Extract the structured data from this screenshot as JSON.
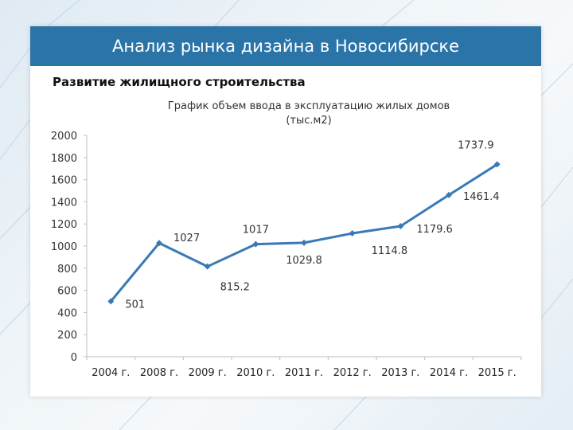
{
  "header": {
    "title": "Анализ рынка дизайна в Новосибирске"
  },
  "section": {
    "subtitle": "Развитие жилищного строительства"
  },
  "chart_data": {
    "type": "line",
    "title_line1": "График объем ввода в эксплуатацию жилых домов",
    "title_line2": "(тыс.м2)",
    "categories": [
      "2004 г.",
      "2008 г.",
      "2009 г.",
      "2010 г.",
      "2011 г.",
      "2012 г.",
      "2013 г.",
      "2014 г.",
      "2015 г."
    ],
    "values": [
      501,
      1027,
      815.2,
      1017,
      1029.8,
      1114.8,
      1179.6,
      1461.4,
      1737.9
    ],
    "data_labels": [
      "501",
      "1027",
      "815.2",
      "1017",
      "1029.8",
      "1114.8",
      "1179.6",
      "1461.4",
      "1737.9"
    ],
    "ylim": [
      0,
      2000
    ],
    "yticks": [
      0,
      200,
      400,
      600,
      800,
      1000,
      1200,
      1400,
      1600,
      1800,
      2000
    ],
    "grid": false,
    "legend": "none",
    "line_color": "#3a79b6"
  }
}
